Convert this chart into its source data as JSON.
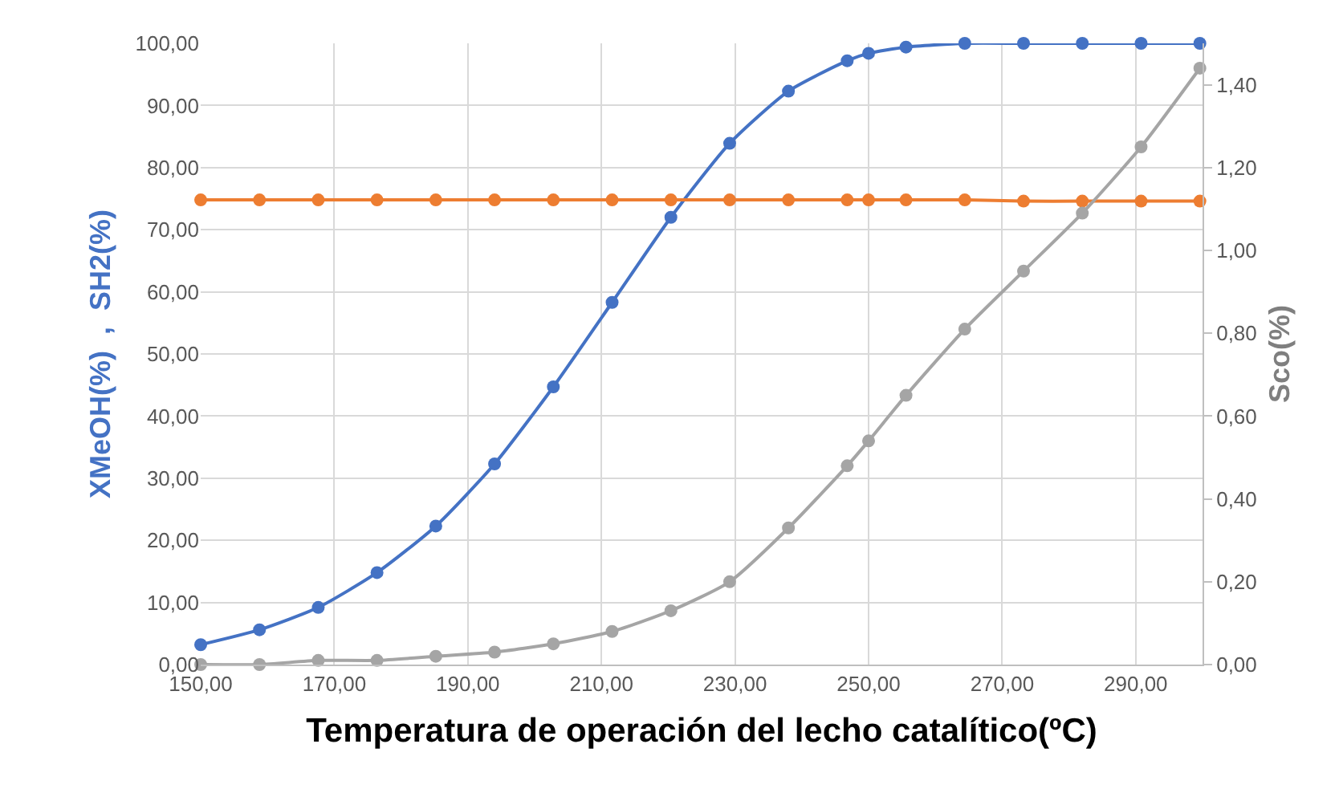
{
  "chart_data": {
    "type": "line",
    "xlabel": "Temperatura de operación del lecho catalítico(ºC)",
    "ylabel": "XMeOH(%)  ,  SH2(%)",
    "y2label": "Sco(%)",
    "x": [
      150,
      158.8,
      167.6,
      176.4,
      185.2,
      194,
      202.8,
      211.6,
      220.4,
      229.2,
      238,
      246.8,
      250,
      255.6,
      264.4,
      273.2,
      282,
      290.8,
      299.6
    ],
    "series": [
      {
        "color": "#4472c4",
        "values": [
          3.2,
          5.6,
          9.2,
          14.8,
          22.3,
          32.3,
          44.7,
          58.3,
          72.0,
          83.9,
          92.3,
          97.2,
          98.4,
          99.4,
          100,
          100,
          100,
          100,
          100
        ]
      },
      {
        "color": "#ed7d31",
        "values": [
          74.8,
          74.8,
          74.8,
          74.8,
          74.8,
          74.8,
          74.8,
          74.8,
          74.8,
          74.8,
          74.8,
          74.8,
          74.8,
          74.8,
          74.8,
          74.6,
          74.6,
          74.6,
          74.6
        ]
      },
      {
        "color": "#a5a5a5",
        "axis": "y2",
        "values": [
          0.0,
          0.0,
          0.01,
          0.01,
          0.02,
          0.03,
          0.05,
          0.08,
          0.13,
          0.2,
          0.33,
          0.48,
          0.54,
          0.65,
          0.81,
          0.95,
          1.09,
          1.25,
          1.44
        ]
      }
    ],
    "xlim": [
      150,
      300
    ],
    "xticks": [
      {
        "value": 150,
        "label": "150,00"
      },
      {
        "value": 170,
        "label": "170,00"
      },
      {
        "value": 190,
        "label": "190,00"
      },
      {
        "value": 210,
        "label": "210,00"
      },
      {
        "value": 230,
        "label": "230,00"
      },
      {
        "value": 250,
        "label": "250,00"
      },
      {
        "value": 270,
        "label": "270,00"
      },
      {
        "value": 290,
        "label": "290,00"
      }
    ],
    "ylim": [
      0,
      100
    ],
    "yticks": [
      {
        "value": 0,
        "label": "0,00"
      },
      {
        "value": 10,
        "label": "10,00"
      },
      {
        "value": 20,
        "label": "20,00"
      },
      {
        "value": 30,
        "label": "30,00"
      },
      {
        "value": 40,
        "label": "40,00"
      },
      {
        "value": 50,
        "label": "50,00"
      },
      {
        "value": 60,
        "label": "60,00"
      },
      {
        "value": 70,
        "label": "70,00"
      },
      {
        "value": 80,
        "label": "80,00"
      },
      {
        "value": 90,
        "label": "90,00"
      },
      {
        "value": 100,
        "label": "100,00"
      }
    ],
    "y2lim": [
      0,
      1.5
    ],
    "y2ticks": [
      {
        "value": 0,
        "label": "0,00"
      },
      {
        "value": 0.2,
        "label": "0,20"
      },
      {
        "value": 0.4,
        "label": "0,40"
      },
      {
        "value": 0.6,
        "label": "0,60"
      },
      {
        "value": 0.8,
        "label": "0,80"
      },
      {
        "value": 1.0,
        "label": "1,00"
      },
      {
        "value": 1.2,
        "label": "1,20"
      },
      {
        "value": 1.4,
        "label": "1,40"
      }
    ],
    "grid": true,
    "marker": "circle",
    "line_style": "solid"
  }
}
